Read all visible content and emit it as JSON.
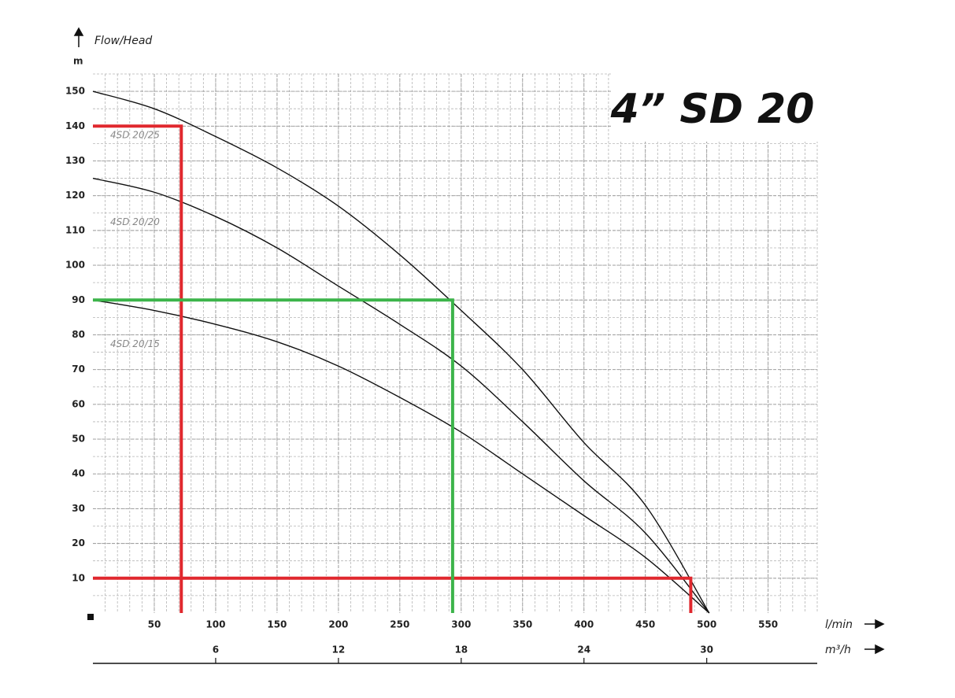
{
  "chart_data": {
    "type": "line",
    "title": "4” SD 20",
    "y_label": "Flow/Head",
    "y_unit": "m",
    "x_label": "l/min",
    "x2_label": "m³/h",
    "xlim": [
      0,
      590
    ],
    "xticks": [
      50,
      100,
      150,
      200,
      250,
      300,
      350,
      400,
      450,
      500,
      550
    ],
    "x2lim": [
      0,
      35.4
    ],
    "x2ticks": [
      6,
      12,
      18,
      24,
      30
    ],
    "ylim": [
      0,
      155
    ],
    "yticks": [
      10,
      20,
      30,
      40,
      50,
      60,
      70,
      80,
      90,
      100,
      110,
      120,
      130,
      140,
      150
    ],
    "minor_grid": {
      "x": 10,
      "y": 5
    },
    "series": [
      {
        "name": "4SD 20/25",
        "color": "#111111",
        "x": [
          0,
          50,
          100,
          150,
          200,
          250,
          300,
          350,
          400,
          450,
          502
        ],
        "y": [
          150,
          145,
          137,
          128,
          117,
          103,
          87,
          70,
          49,
          31,
          0
        ]
      },
      {
        "name": "4SD 20/20",
        "color": "#111111",
        "x": [
          0,
          50,
          100,
          150,
          200,
          250,
          300,
          350,
          400,
          450,
          502
        ],
        "y": [
          125,
          121,
          114,
          105,
          94,
          83,
          71,
          55,
          38,
          23,
          0
        ]
      },
      {
        "name": "4SD 20/15",
        "color": "#111111",
        "x": [
          0,
          50,
          100,
          150,
          200,
          250,
          300,
          350,
          400,
          450,
          502
        ],
        "y": [
          90,
          87,
          83,
          78,
          71,
          62,
          52,
          40,
          28,
          16,
          0
        ]
      }
    ],
    "guide_lines": [
      {
        "color": "#e0282e",
        "x": [
          0,
          72,
          72
        ],
        "y": [
          140,
          140,
          0
        ]
      },
      {
        "color": "#e0282e",
        "x": [
          0,
          487,
          487
        ],
        "y": [
          10,
          10,
          0
        ]
      },
      {
        "color": "#3cb44a",
        "x": [
          0,
          293,
          293
        ],
        "y": [
          90,
          90,
          0
        ]
      }
    ]
  }
}
